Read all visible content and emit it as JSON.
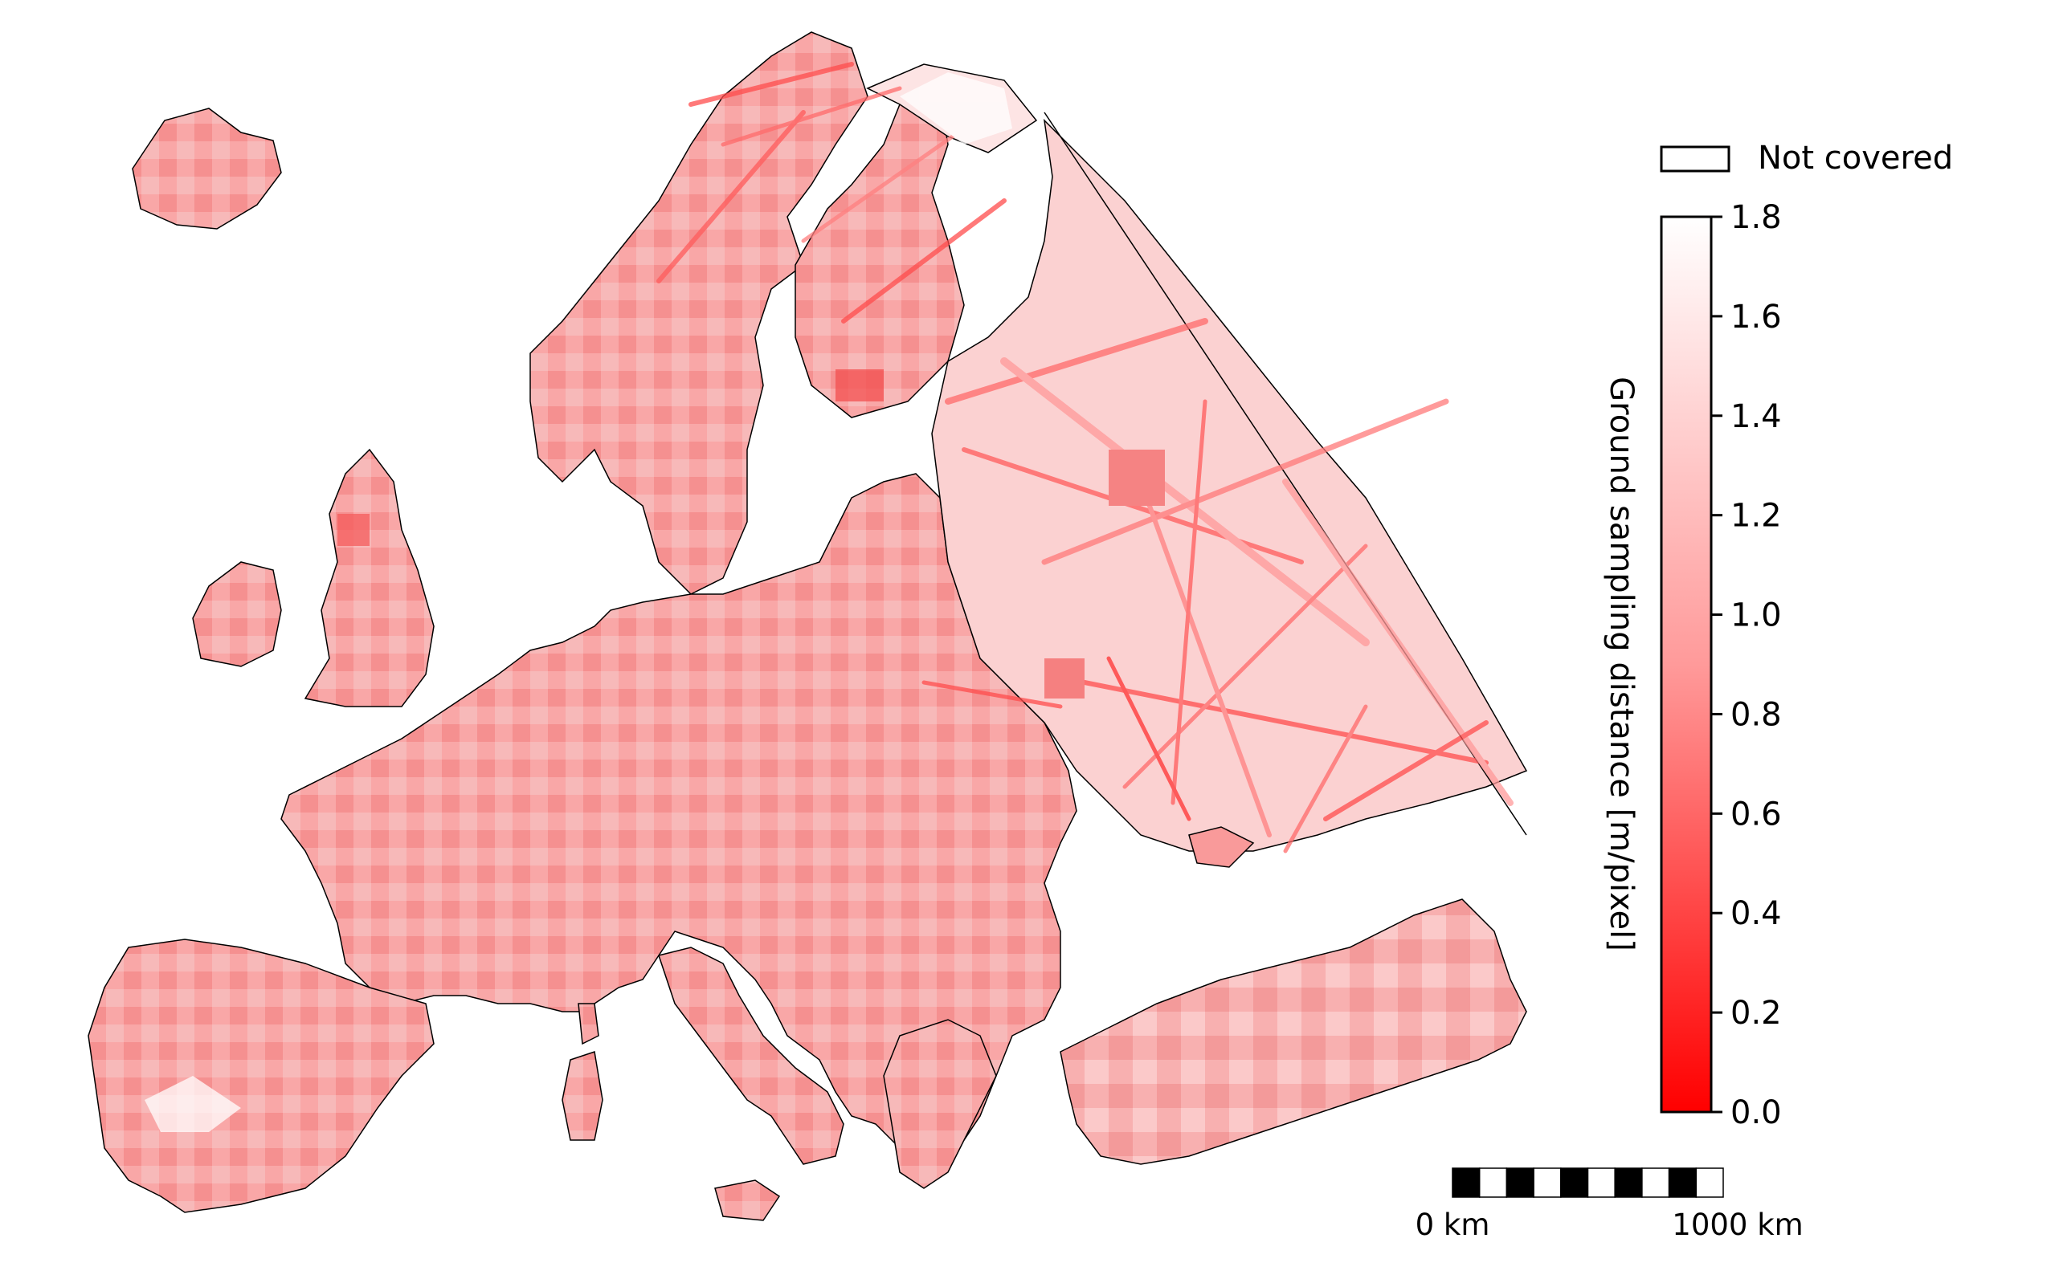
{
  "legend": {
    "not_covered_label": "Not covered",
    "not_covered_color": "#ffffff"
  },
  "colorbar": {
    "label": "Ground sampling distance [m/pixel]",
    "min": 0.0,
    "max": 1.8,
    "ticks": [
      "0.0",
      "0.2",
      "0.4",
      "0.6",
      "0.8",
      "1.0",
      "1.2",
      "1.4",
      "1.6",
      "1.8"
    ],
    "color_low": "#ff0000",
    "color_high": "#ffffff"
  },
  "scalebar": {
    "left_label": "0 km",
    "right_label": "1000 km",
    "segments": 10
  },
  "map": {
    "fill_color": "#f9a3a3",
    "border_color": "#000000",
    "track_color": "#ff4d4d"
  }
}
